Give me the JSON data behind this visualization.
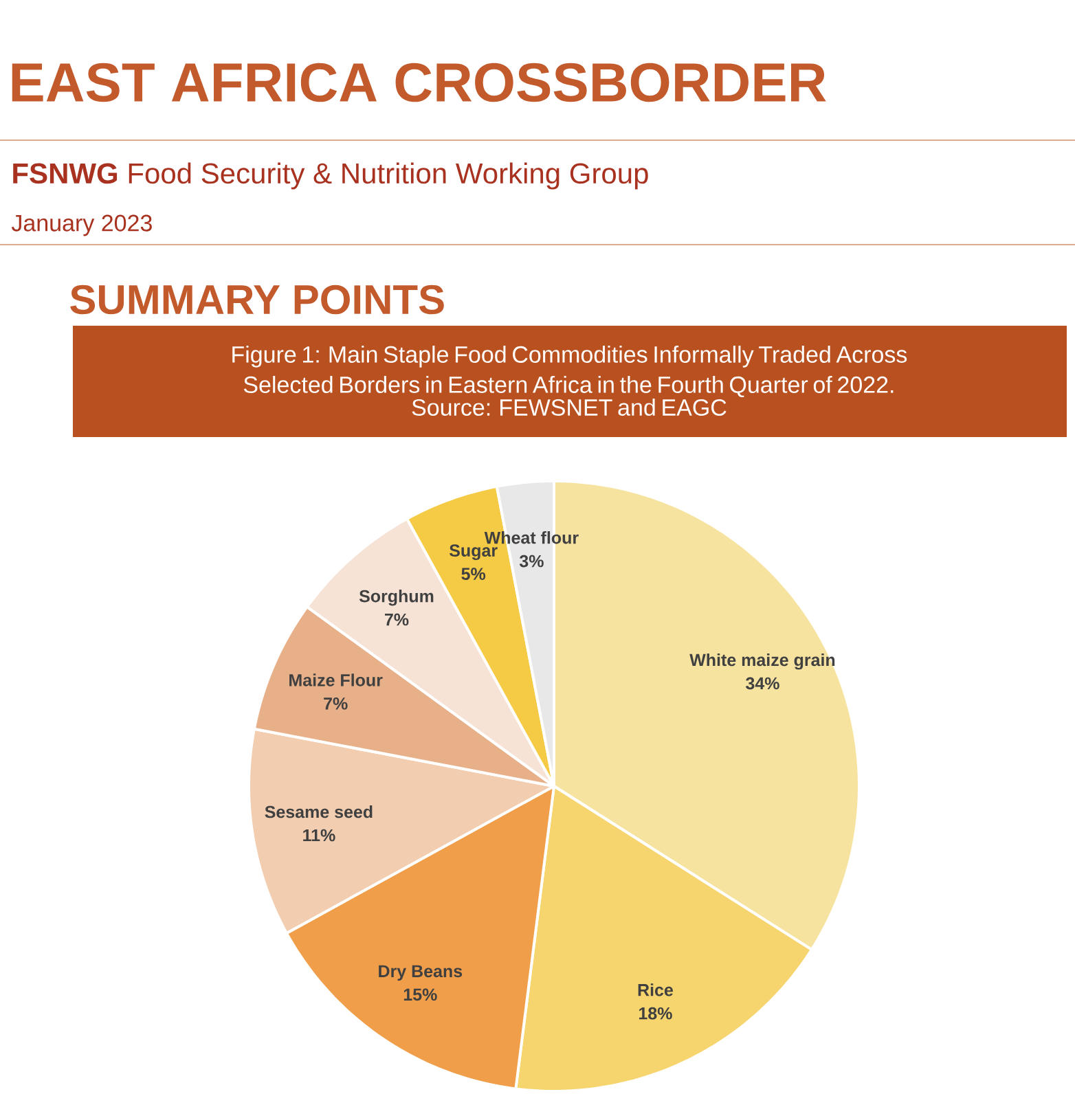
{
  "chart_data": {
    "type": "pie",
    "title": "Figure 1: Main Staple Food Commodities Informally Traded Across Selected Borders in Eastern Africa in the Fourth Quarter of 2022.",
    "subtitle": "Source: FEWSNET and EAGC",
    "annotations": [
      "EAST AFRICA CROSSBORDER",
      "**FSNWG** Food Security & Nutrition Working Group",
      "January 2023",
      "SUMMARY POINTS"
    ],
    "categories": [
      "White maize grain",
      "Rice",
      "Dry Beans",
      "Sesame seed",
      "Maize Flour",
      "Sorghum",
      "Sugar",
      "Wheat flour"
    ],
    "values": [
      34,
      18,
      15,
      11,
      7,
      7,
      5,
      3
    ],
    "colors": [
      "#f7e3a0",
      "#f6d46e",
      "#f09e4a",
      "#f2cdb0",
      "#e8b089",
      "#f7e3d6",
      "#f5cb45",
      "#e8e8e8"
    ],
    "value_labels": [
      "34%",
      "18%",
      "15%",
      "11%",
      "7%",
      "7%",
      "5%",
      "3%"
    ]
  }
}
